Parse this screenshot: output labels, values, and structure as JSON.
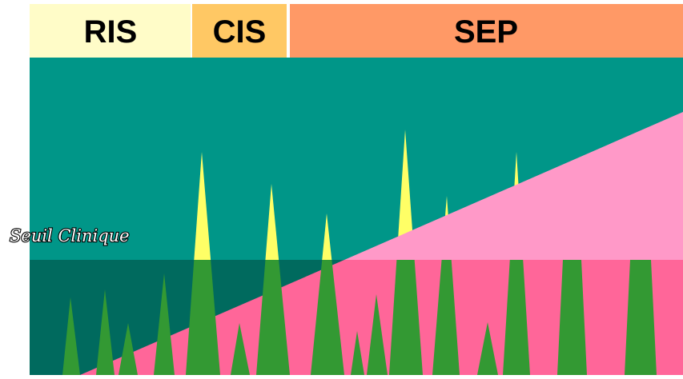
{
  "header": {
    "sections": [
      "RIS",
      "CIS",
      "SEP"
    ]
  },
  "threshold_label": "Seuil Clinique"
}
